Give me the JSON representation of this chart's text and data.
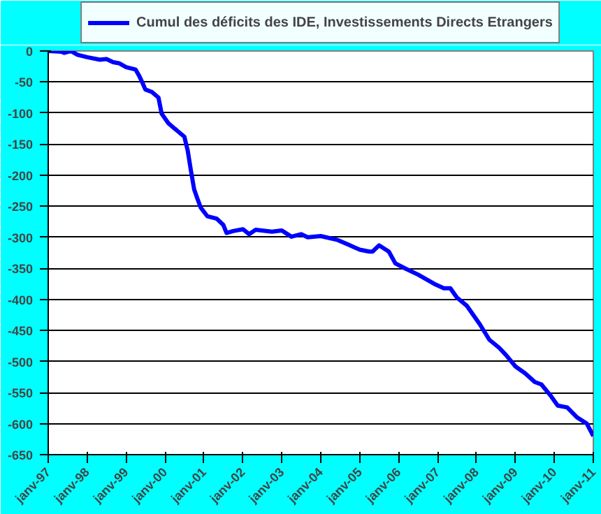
{
  "chart_data": {
    "type": "line",
    "x": [
      "1997-01",
      "1997-05",
      "1997-06",
      "1997-08",
      "1997-10",
      "1998-01",
      "1998-05",
      "1998-07",
      "1998-09",
      "1998-11",
      "1999-01",
      "1999-04",
      "1999-05",
      "1999-06",
      "1999-07",
      "1999-09",
      "1999-11",
      "1999-12",
      "2000-02",
      "2000-04",
      "2000-07",
      "2000-08",
      "2000-09",
      "2000-10",
      "2000-11",
      "2000-12",
      "2001-02",
      "2001-05",
      "2001-07",
      "2001-08",
      "2001-10",
      "2002-01",
      "2002-03",
      "2002-05",
      "2002-10",
      "2003-01",
      "2003-04",
      "2003-07",
      "2003-09",
      "2004-01",
      "2004-06",
      "2004-10",
      "2005-01",
      "2005-04",
      "2005-05",
      "2005-07",
      "2005-10",
      "2005-12",
      "2006-03",
      "2006-07",
      "2006-12",
      "2007-03",
      "2007-05",
      "2007-07",
      "2007-10",
      "2008-02",
      "2008-05",
      "2008-08",
      "2008-10",
      "2009-01",
      "2009-04",
      "2009-07",
      "2009-09",
      "2009-12",
      "2010-02",
      "2010-05",
      "2010-08",
      "2010-11",
      "2011-01"
    ],
    "series": [
      {
        "name": "Cumul des déficits des IDE, Investissements Directs Etrangers",
        "color": "#0000ff",
        "values": [
          0,
          -1,
          -3,
          0,
          -6,
          -10,
          -14,
          -13,
          -18,
          -20,
          -26,
          -30,
          -39,
          -50,
          -62,
          -66,
          -75,
          -101,
          -116,
          -125,
          -138,
          -160,
          -193,
          -223,
          -238,
          -252,
          -266,
          -270,
          -280,
          -293,
          -290,
          -287,
          -295,
          -288,
          -291,
          -289,
          -299,
          -295,
          -300,
          -298,
          -304,
          -313,
          -320,
          -323,
          -323,
          -313,
          -323,
          -342,
          -350,
          -360,
          -375,
          -382,
          -382,
          -397,
          -410,
          -440,
          -465,
          -478,
          -489,
          -508,
          -519,
          -533,
          -537,
          -556,
          -571,
          -574,
          -590,
          -600,
          -620
        ]
      }
    ],
    "xlim": [
      "1997-01",
      "2011-01"
    ],
    "xticks": [
      {
        "value": "1997-01",
        "label": "janv-97"
      },
      {
        "value": "1998-01",
        "label": "janv-98"
      },
      {
        "value": "1999-01",
        "label": "janv-99"
      },
      {
        "value": "2000-01",
        "label": "janv-00"
      },
      {
        "value": "2001-01",
        "label": "janv-01"
      },
      {
        "value": "2002-01",
        "label": "janv-02"
      },
      {
        "value": "2003-01",
        "label": "janv-03"
      },
      {
        "value": "2004-01",
        "label": "janv-04"
      },
      {
        "value": "2005-01",
        "label": "janv-05"
      },
      {
        "value": "2006-01",
        "label": "janv-06"
      },
      {
        "value": "2007-01",
        "label": "janv-07"
      },
      {
        "value": "2008-01",
        "label": "janv-08"
      },
      {
        "value": "2009-01",
        "label": "janv-09"
      },
      {
        "value": "2010-01",
        "label": "janv-10"
      },
      {
        "value": "2011-01",
        "label": "janv-11"
      }
    ],
    "ylim": [
      -650,
      0
    ],
    "yticks": [
      0,
      -50,
      -100,
      -150,
      -200,
      -250,
      -300,
      -350,
      -400,
      -450,
      -500,
      -550,
      -600,
      -650
    ],
    "grid": "y",
    "legend": "top",
    "marker": "none",
    "line_style": "solid"
  }
}
